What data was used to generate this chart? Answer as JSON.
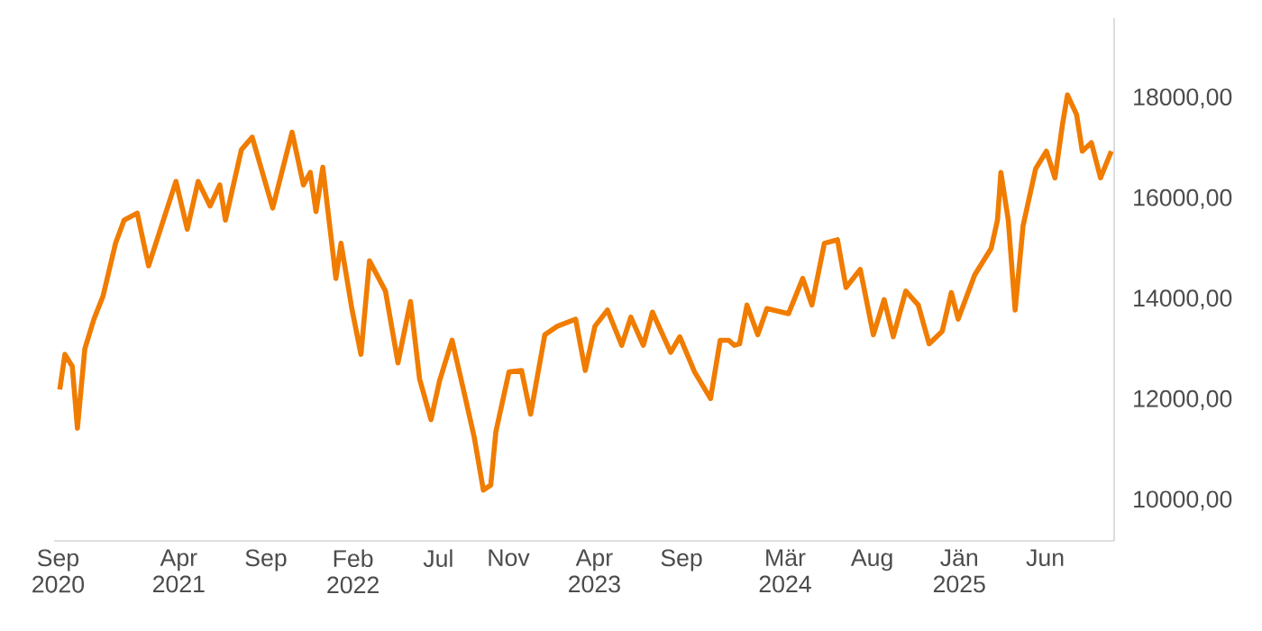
{
  "chart_data": {
    "type": "line",
    "x": [
      "2020-09-04",
      "2020-09-13",
      "2020-09-26",
      "2020-10-05",
      "2020-10-18",
      "2020-11-03",
      "2020-11-19",
      "2020-12-11",
      "2020-12-26",
      "2021-01-18",
      "2021-02-07",
      "2021-02-27",
      "2021-03-27",
      "2021-04-16",
      "2021-05-05",
      "2021-05-26",
      "2021-06-12",
      "2021-06-22",
      "2021-07-20",
      "2021-08-08",
      "2021-08-24",
      "2021-09-13",
      "2021-10-17",
      "2021-11-06",
      "2021-11-18",
      "2021-11-28",
      "2021-12-10",
      "2022-01-02",
      "2022-01-11",
      "2022-01-30",
      "2022-02-15",
      "2022-03-02",
      "2022-03-30",
      "2022-04-21",
      "2022-05-13",
      "2022-05-29",
      "2022-06-18",
      "2022-07-03",
      "2022-07-25",
      "2022-08-14",
      "2022-09-02",
      "2022-09-18",
      "2022-10-01",
      "2022-10-10",
      "2022-11-02",
      "2022-11-24",
      "2022-12-10",
      "2023-01-04",
      "2023-01-26",
      "2023-02-27",
      "2023-03-16",
      "2023-04-02",
      "2023-04-24",
      "2023-05-19",
      "2023-06-04",
      "2023-06-26",
      "2023-07-12",
      "2023-08-13",
      "2023-08-29",
      "2023-09-24",
      "2023-10-22",
      "2023-11-08",
      "2023-11-23",
      "2023-12-03",
      "2023-12-12",
      "2023-12-25",
      "2024-01-13",
      "2024-01-29",
      "2024-03-07",
      "2024-04-01",
      "2024-04-17",
      "2024-05-09",
      "2024-06-01",
      "2024-06-16",
      "2024-07-11",
      "2024-08-03",
      "2024-08-22",
      "2024-09-07",
      "2024-09-29",
      "2024-10-21",
      "2024-11-09",
      "2024-12-02",
      "2024-12-18",
      "2024-12-30",
      "2025-01-28",
      "2025-02-26",
      "2025-03-09",
      "2025-03-15",
      "2025-03-28",
      "2025-04-09",
      "2025-04-23",
      "2025-05-15",
      "2025-06-03",
      "2025-06-18",
      "2025-07-01",
      "2025-07-10",
      "2025-07-26",
      "2025-08-05",
      "2025-08-21",
      "2025-09-06",
      "2025-09-25"
    ],
    "series": [
      {
        "color": "#f07c00",
        "values": [
          12210,
          12910,
          12670,
          11440,
          13020,
          13610,
          14070,
          15120,
          15580,
          15720,
          14670,
          15370,
          16350,
          15400,
          16350,
          15860,
          16280,
          15580,
          16980,
          17230,
          16600,
          15820,
          17330,
          16280,
          16530,
          15750,
          16630,
          14420,
          15120,
          13820,
          12910,
          14770,
          14170,
          12740,
          13960,
          12420,
          11610,
          12380,
          13190,
          12210,
          11260,
          10210,
          10310,
          11370,
          12560,
          12590,
          11720,
          13300,
          13470,
          13610,
          12590,
          13470,
          13790,
          13090,
          13650,
          13090,
          13750,
          12950,
          13260,
          12560,
          12030,
          13190,
          13190,
          13090,
          13120,
          13890,
          13300,
          13820,
          13720,
          14420,
          13890,
          15120,
          15190,
          14240,
          14600,
          13300,
          14000,
          13260,
          14170,
          13890,
          13120,
          13370,
          14140,
          13610,
          14490,
          15020,
          15580,
          16530,
          15580,
          13790,
          15470,
          16600,
          16950,
          16420,
          17470,
          18070,
          17680,
          16950,
          17120,
          16420,
          16950
        ]
      }
    ],
    "xlim": [
      "2020-08-25",
      "2025-09-30"
    ],
    "ylim": [
      9200,
      19600
    ],
    "xticks": [
      {
        "value": "2020-09-01",
        "label": "Sep 2020"
      },
      {
        "value": "2021-04-01",
        "label": "Apr 2021"
      },
      {
        "value": "2021-09-01",
        "label": "Sep"
      },
      {
        "value": "2022-02-01",
        "label": "Feb 2022"
      },
      {
        "value": "2022-07-01",
        "label": "Jul"
      },
      {
        "value": "2022-11-01",
        "label": "Nov"
      },
      {
        "value": "2023-04-01",
        "label": "Apr 2023"
      },
      {
        "value": "2023-09-01",
        "label": "Sep"
      },
      {
        "value": "2024-03-01",
        "label": "Mär 2024"
      },
      {
        "value": "2024-08-01",
        "label": "Aug"
      },
      {
        "value": "2025-01-01",
        "label": "Jän 2025"
      },
      {
        "value": "2025-06-01",
        "label": "Jun"
      }
    ],
    "yticks": [
      {
        "value": 10000,
        "label": "10000,00"
      },
      {
        "value": 12000,
        "label": "12000,00"
      },
      {
        "value": 14000,
        "label": "14000,00"
      },
      {
        "value": 16000,
        "label": "16000,00"
      },
      {
        "value": 18000,
        "label": "18000,00"
      }
    ],
    "grid": false,
    "marker": "none",
    "line_style": "solid"
  }
}
